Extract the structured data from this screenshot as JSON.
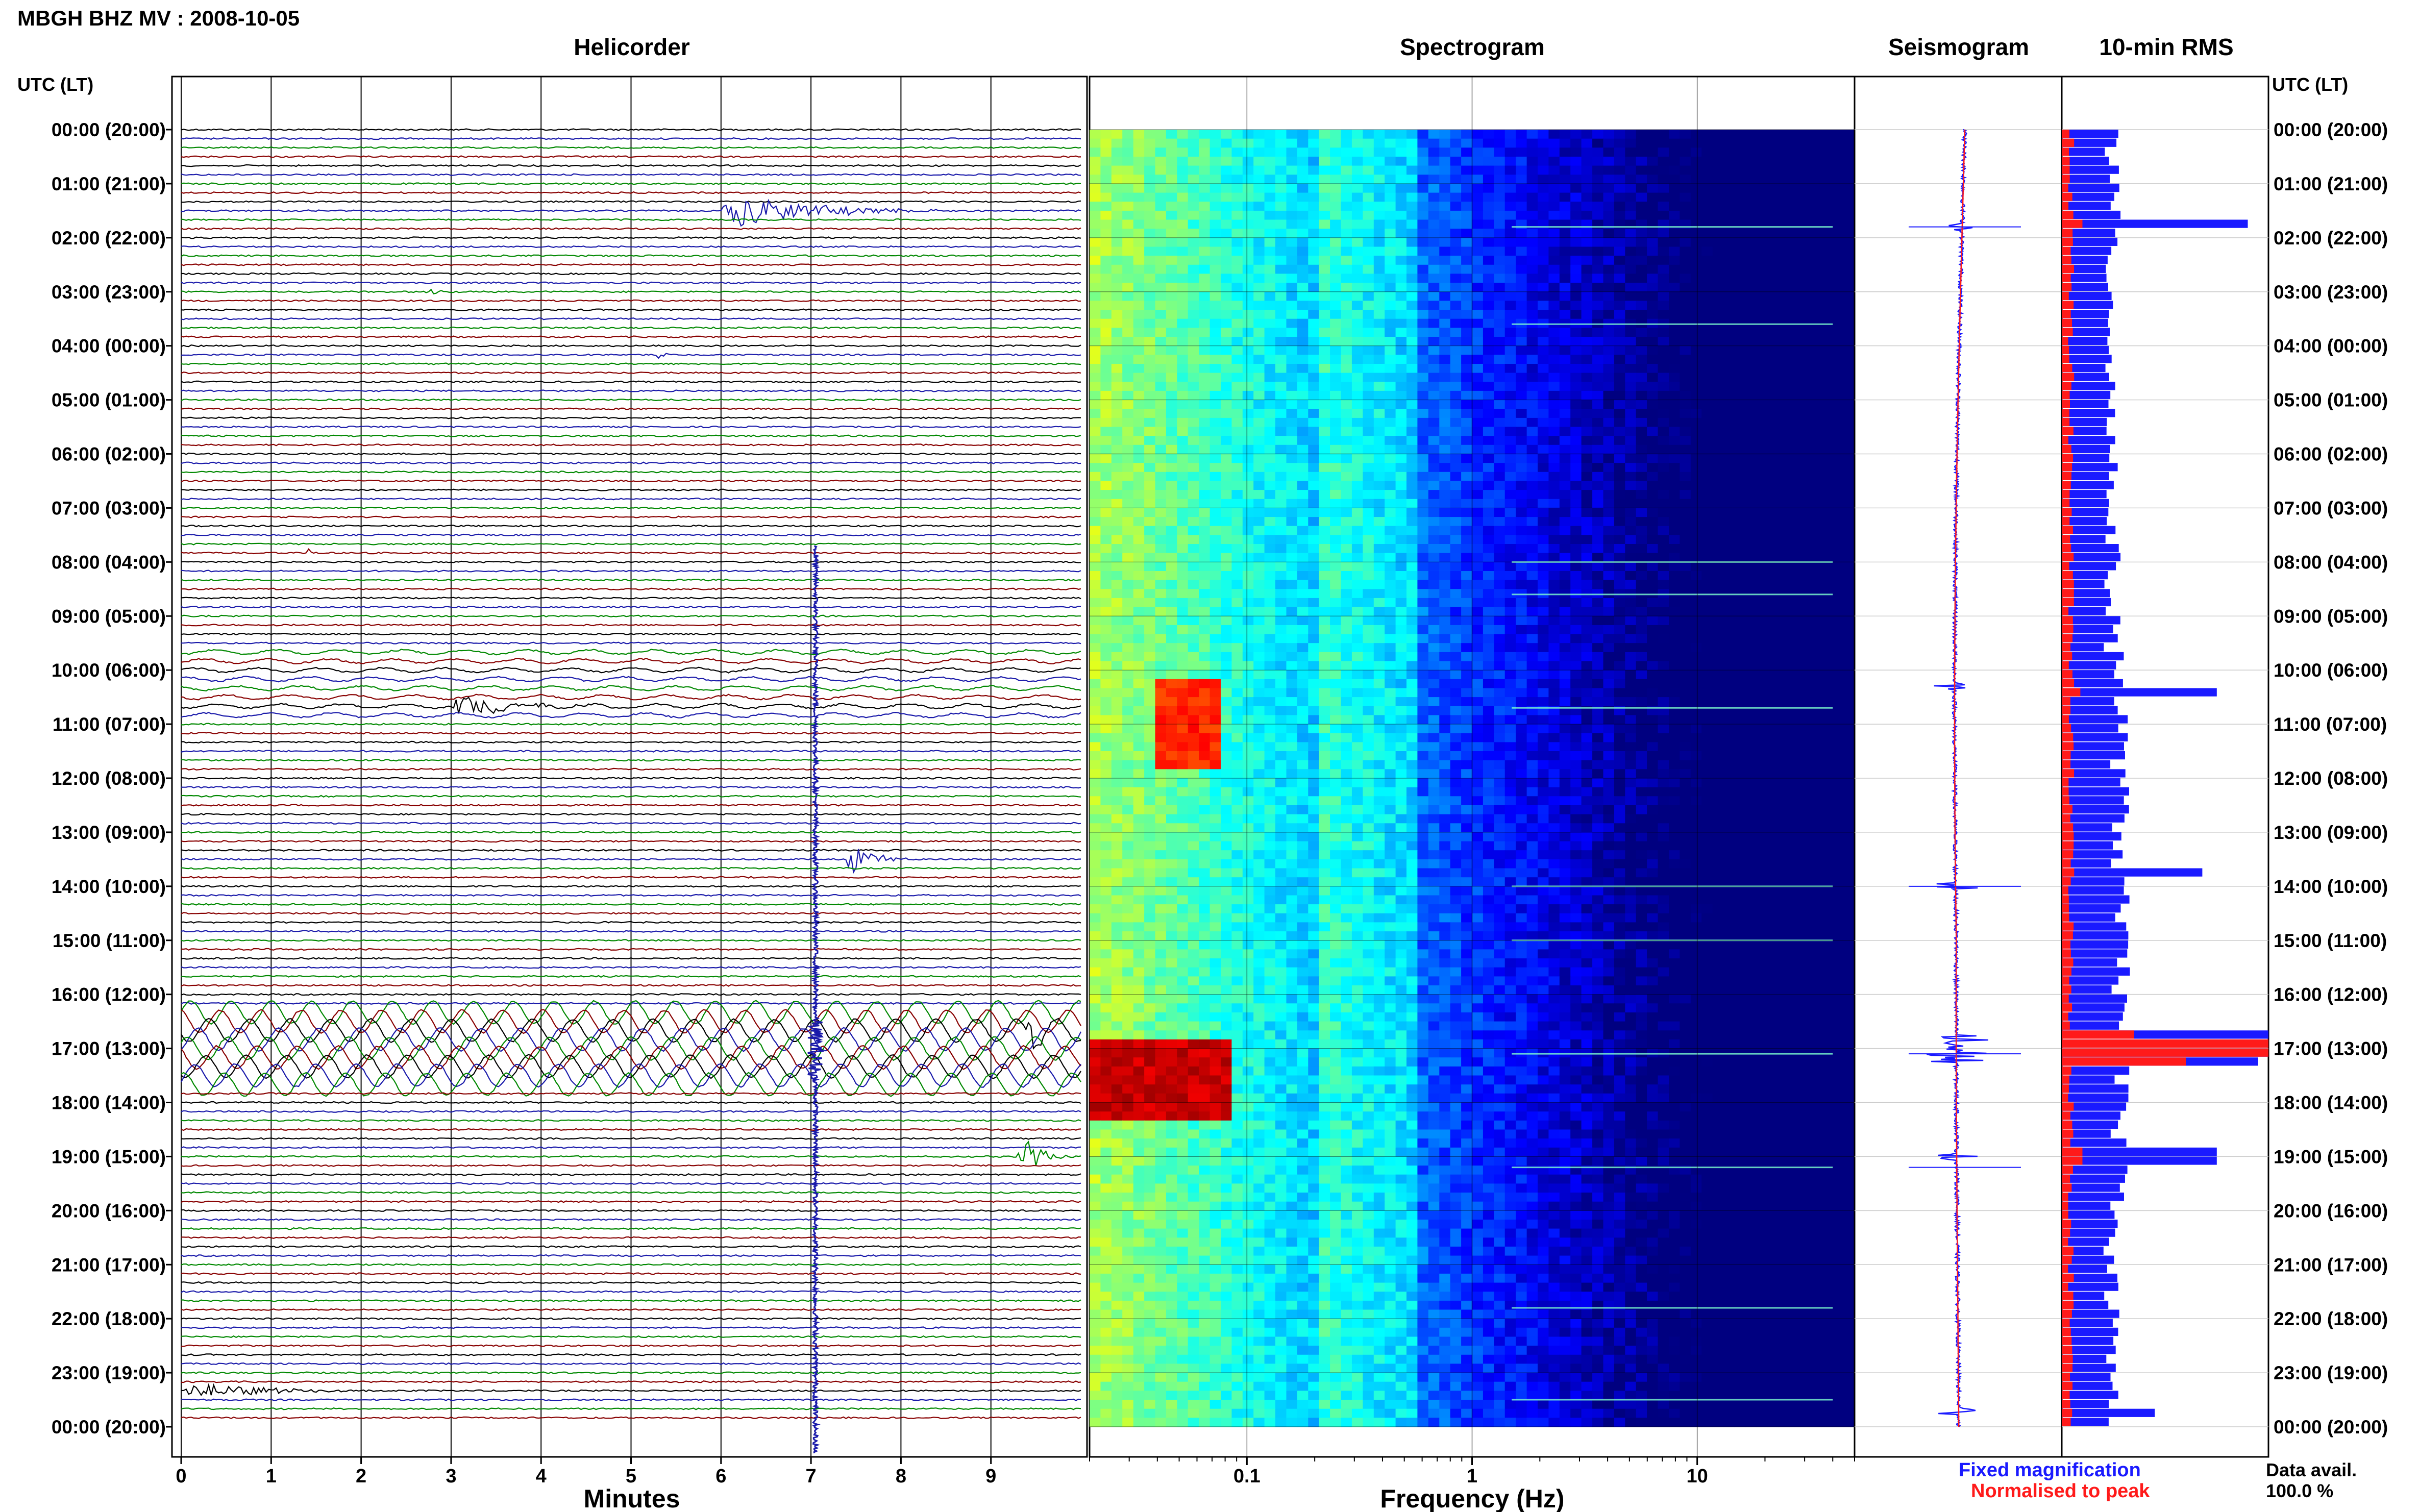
{
  "header": {
    "title": "MBGH BHZ MV : 2008-10-05"
  },
  "panels": {
    "helicorder": "Helicorder",
    "spectrogram": "Spectrogram",
    "seismogram": "Seismogram",
    "rms": "10-min RMS"
  },
  "time_axis_label": "UTC (LT)",
  "time_ticks": [
    "00:00 (20:00)",
    "01:00 (21:00)",
    "02:00 (22:00)",
    "03:00 (23:00)",
    "04:00 (00:00)",
    "05:00 (01:00)",
    "06:00 (02:00)",
    "07:00 (03:00)",
    "08:00 (04:00)",
    "09:00 (05:00)",
    "10:00 (06:00)",
    "11:00 (07:00)",
    "12:00 (08:00)",
    "13:00 (09:00)",
    "14:00 (10:00)",
    "15:00 (11:00)",
    "16:00 (12:00)",
    "17:00 (13:00)",
    "18:00 (14:00)",
    "19:00 (15:00)",
    "20:00 (16:00)",
    "21:00 (17:00)",
    "22:00 (18:00)",
    "23:00 (19:00)",
    "00:00 (20:00)"
  ],
  "legend": {
    "fixed": "Fixed magnification",
    "normalised": "Normalised to peak",
    "fixed_color": "#1a1aff",
    "normalised_color": "#ff1a1a"
  },
  "data_avail": {
    "label": "Data avail.",
    "value": "100.0 %"
  },
  "colors": {
    "helicorder_traces": [
      "#000000",
      "#1a1aaa",
      "#008800",
      "#880000"
    ]
  },
  "chart_data": [
    {
      "type": "line",
      "title": "Helicorder",
      "xlabel": "Minutes",
      "xlim": [
        0,
        10
      ],
      "x_ticks": [
        "0",
        "1",
        "2",
        "3",
        "4",
        "5",
        "6",
        "7",
        "8",
        "9"
      ],
      "ylim_hours": [
        0,
        24
      ],
      "rows_per_hour": 6,
      "events": [
        {
          "hour": 1.55,
          "minute_start": 6.0,
          "minute_end": 8.6,
          "amplitude": 1.4
        },
        {
          "hour": 3.05,
          "minute_start": 2.7,
          "minute_end": 3.0,
          "amplitude": 0.3
        },
        {
          "hour": 4.17,
          "minute_start": 5.3,
          "minute_end": 5.5,
          "amplitude": 0.5
        },
        {
          "hour": 7.85,
          "minute_start": 1.4,
          "minute_end": 1.6,
          "amplitude": 0.4
        },
        {
          "hour": 10.7,
          "minute_start": 3.0,
          "minute_end": 4.9,
          "amplitude": 0.9
        },
        {
          "hour": 13.55,
          "minute_start": 7.4,
          "minute_end": 8.1,
          "amplitude": 1.4
        },
        {
          "hour": 16.6,
          "minute_start": 9.4,
          "minute_end": 9.8,
          "amplitude": 1.3
        },
        {
          "hour": 18.95,
          "minute_start": 9.3,
          "minute_end": 9.9,
          "amplitude": 2.0
        },
        {
          "hour": 23.4,
          "minute_start": 0.0,
          "minute_end": 2.2,
          "amplitude": 0.8
        }
      ],
      "big_event": {
        "minute": 7.05,
        "hour_top": 7.7,
        "hour_bottom": 24.5
      },
      "swell_hours": [
        16.3,
        17.7
      ]
    },
    {
      "type": "heatmap",
      "title": "Spectrogram",
      "xlabel": "Frequency (Hz)",
      "x_scale": "log",
      "xlim": [
        0.02,
        50
      ],
      "x_ticks": [
        0.1,
        1,
        10
      ],
      "x_tick_labels": [
        "0.1",
        "1",
        "10"
      ],
      "ylim_hours": [
        0,
        24
      ],
      "hot_spots": [
        {
          "hour_start": 10.1,
          "hour_end": 11.8,
          "f_low": 0.04,
          "f_high": 0.075,
          "level": 0.88
        },
        {
          "hour_start": 16.7,
          "hour_end": 18.3,
          "f_low": 0.02,
          "f_high": 0.085,
          "level": 0.97
        }
      ],
      "lines_hours": [
        1.8,
        3.6,
        8.0,
        8.6,
        10.7,
        14.0,
        15.0,
        17.1,
        19.2,
        21.8,
        23.5
      ]
    },
    {
      "type": "line",
      "title": "Seismogram",
      "series": [
        {
          "name": "Fixed magnification",
          "color": "#1a1aff"
        },
        {
          "name": "Normalised to peak",
          "color": "#ff1a1a"
        }
      ],
      "spikes_hours": [
        1.8,
        10.3,
        14.0,
        17.0,
        19.0,
        23.7
      ],
      "big_spike_hour": 17.0
    },
    {
      "type": "bar",
      "title": "10-min RMS",
      "series": [
        {
          "name": "Fixed magnification",
          "color": "#1a1aff"
        },
        {
          "name": "Normalised to peak",
          "color": "#ff1a1a"
        }
      ],
      "xlim": [
        0,
        1
      ],
      "ylim_hours": [
        0,
        24
      ],
      "bars_per_hour": 6,
      "baseline_level": 0.25,
      "peaks": [
        {
          "hour": 1.8,
          "fixed": 0.9,
          "normalised": 0.1
        },
        {
          "hour": 9.7,
          "fixed": 0.3,
          "normalised": 0.05
        },
        {
          "hour": 10.4,
          "fixed": 0.75,
          "normalised": 0.09
        },
        {
          "hour": 13.8,
          "fixed": 0.68,
          "normalised": 0.06
        },
        {
          "hour": 16.8,
          "fixed": 1.0,
          "normalised": 0.35
        },
        {
          "hour": 17.0,
          "fixed": 1.0,
          "normalised": 1.0
        },
        {
          "hour": 17.2,
          "fixed": 0.95,
          "normalised": 0.6
        },
        {
          "hour": 19.0,
          "fixed": 0.75,
          "normalised": 0.1
        },
        {
          "hour": 23.7,
          "fixed": 0.45,
          "normalised": 0.05
        }
      ]
    }
  ]
}
